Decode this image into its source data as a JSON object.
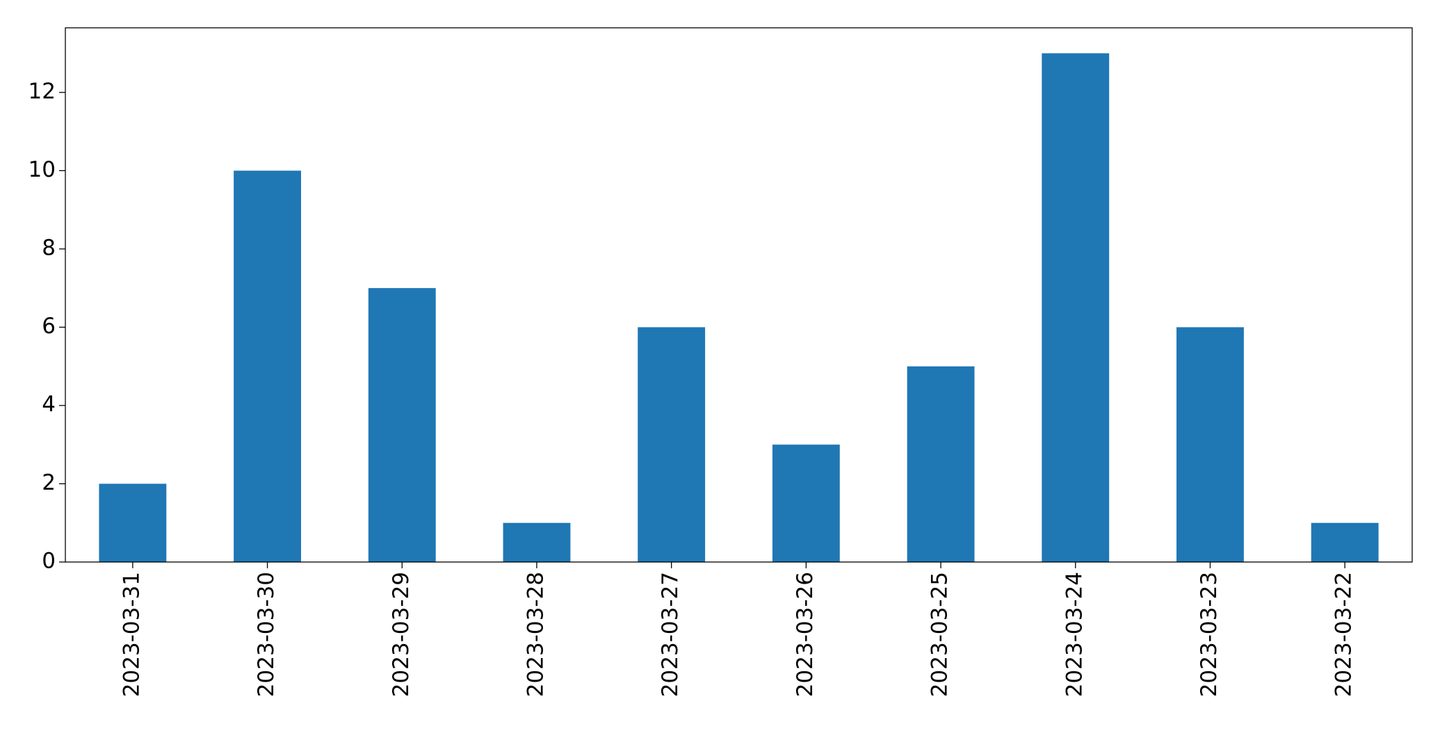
{
  "chart_data": {
    "type": "bar",
    "categories": [
      "2023-03-31",
      "2023-03-30",
      "2023-03-29",
      "2023-03-28",
      "2023-03-27",
      "2023-03-26",
      "2023-03-25",
      "2023-03-24",
      "2023-03-23",
      "2023-03-22"
    ],
    "values": [
      2,
      10,
      7,
      1,
      6,
      3,
      5,
      13,
      6,
      1
    ],
    "color": "#1f77b4",
    "ylim": [
      0,
      13.65
    ],
    "yticks": [
      0,
      2,
      4,
      6,
      8,
      10,
      12
    ],
    "grid": false
  }
}
